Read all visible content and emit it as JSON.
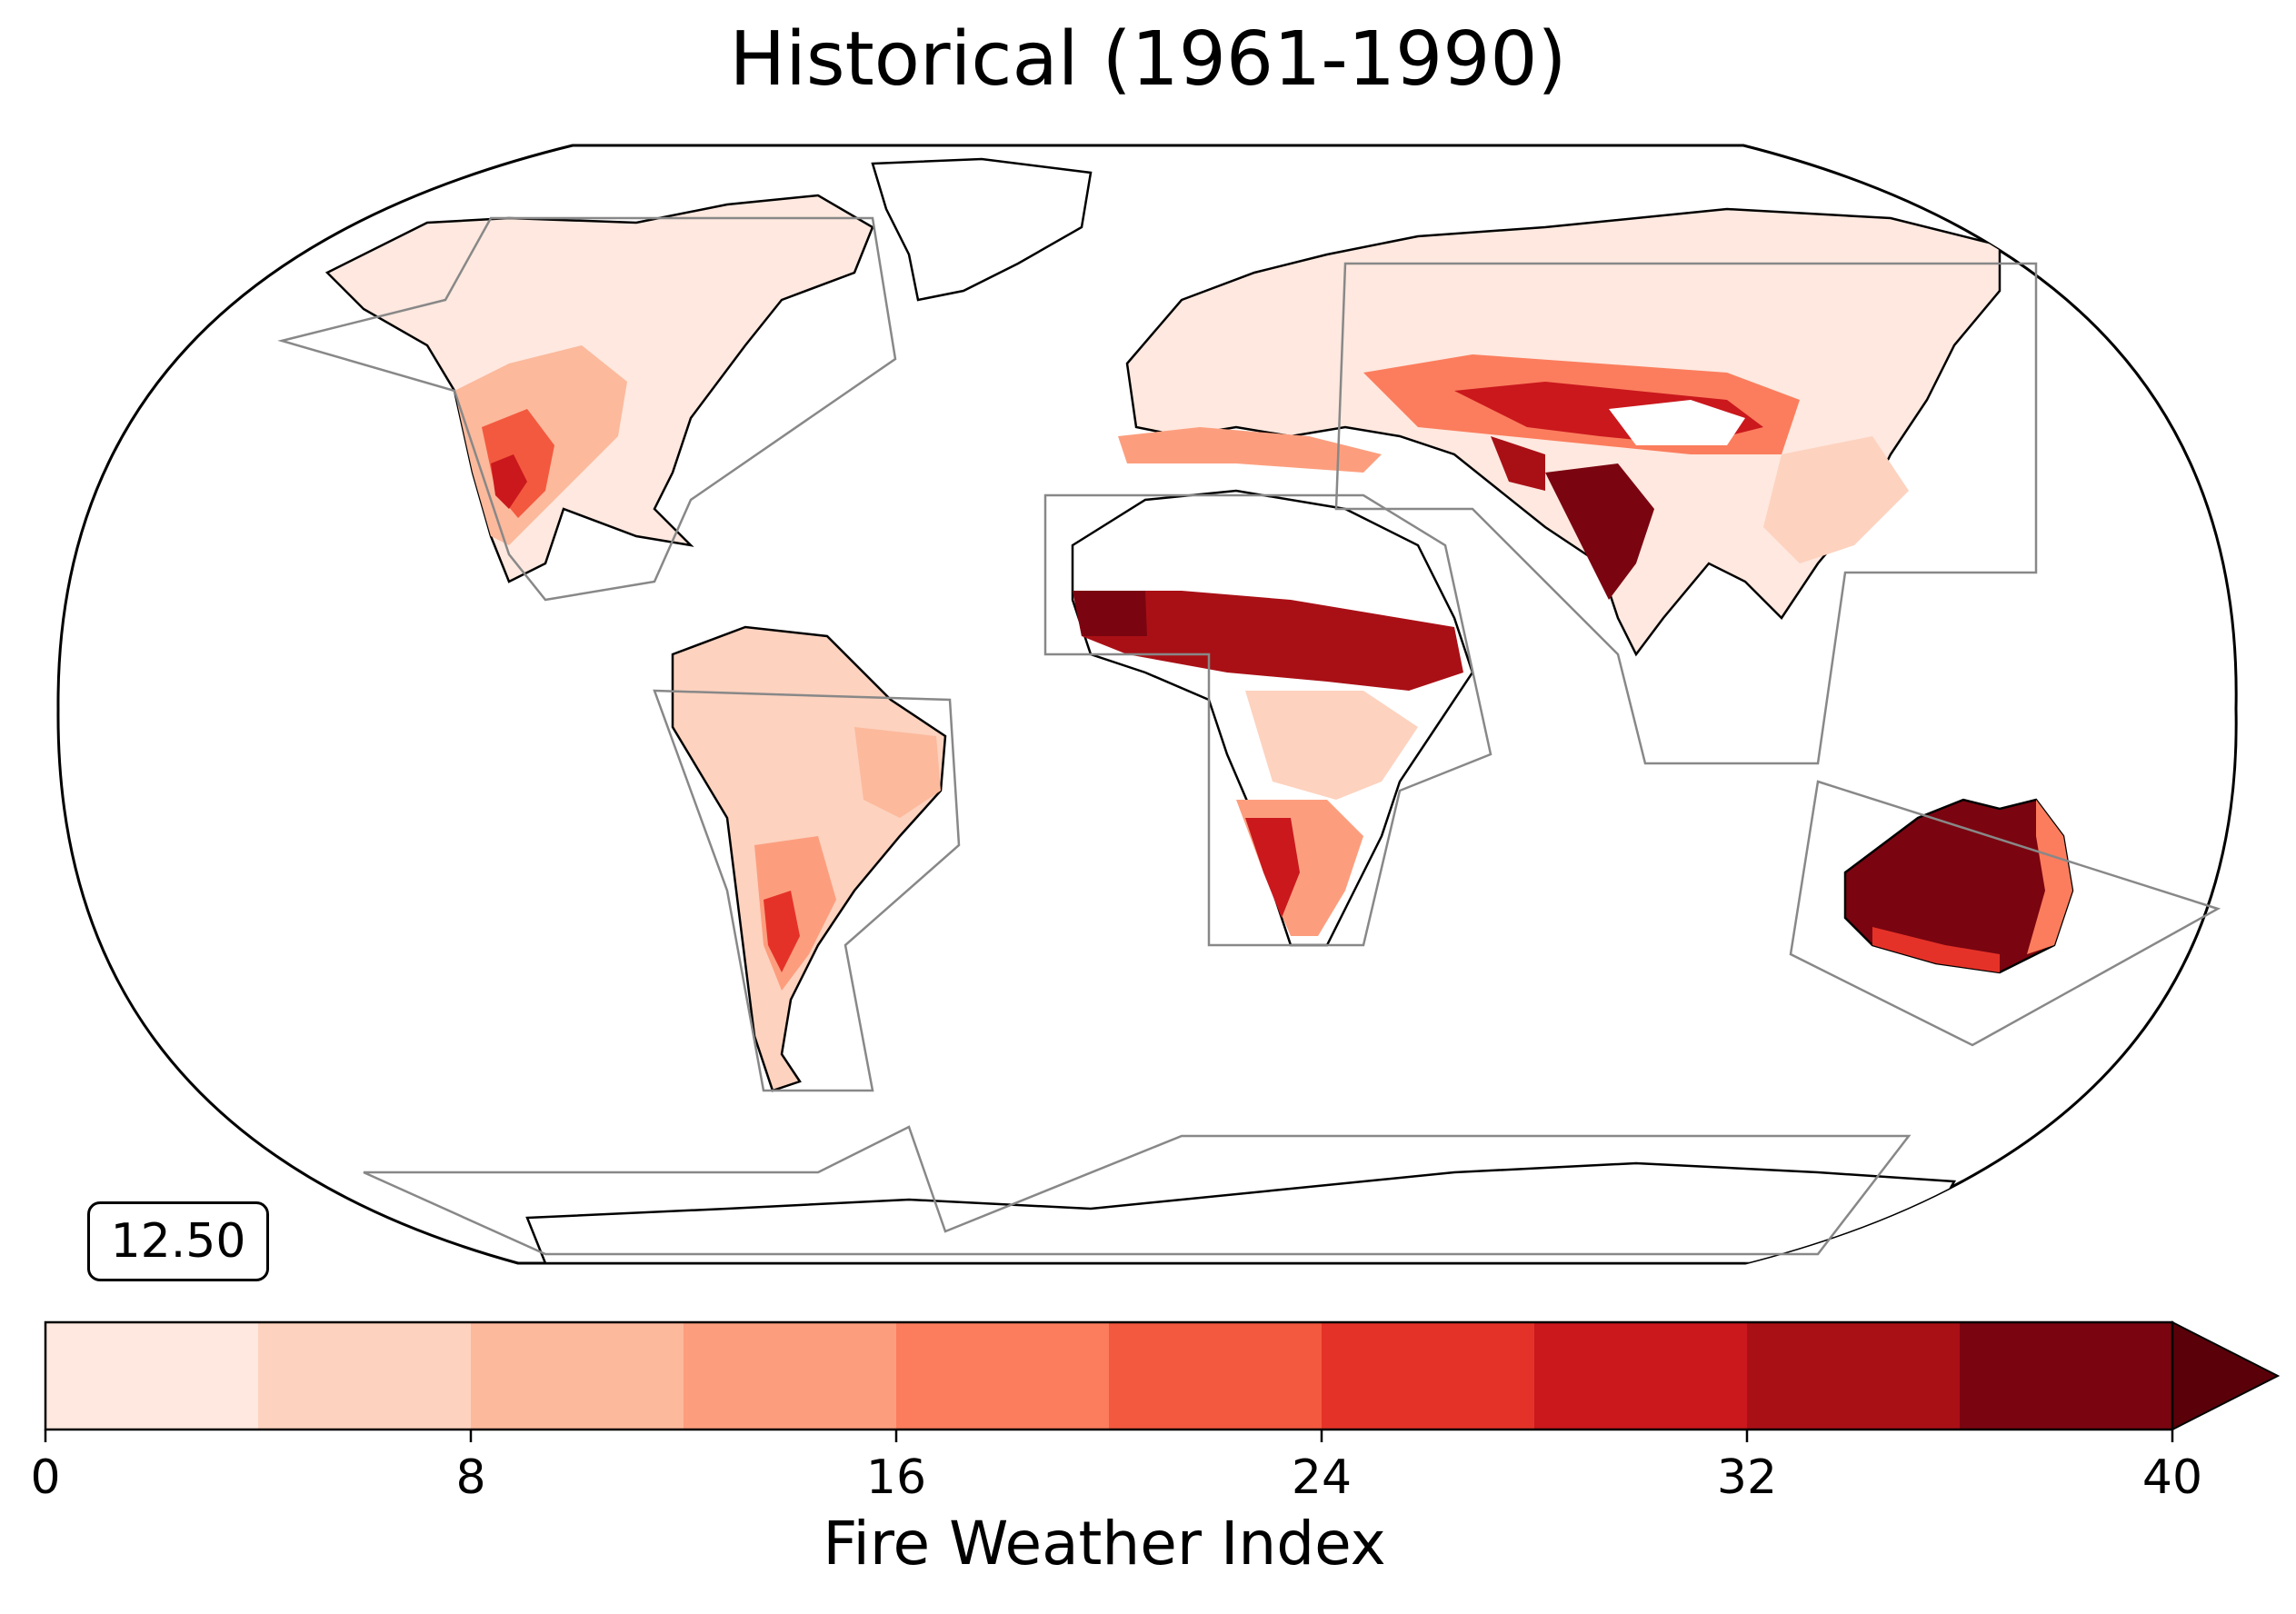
{
  "title": "Historical (1961-1990)",
  "average_value": "12.50",
  "colorbar": {
    "label": "Fire Weather Index",
    "min": 0,
    "max": 40,
    "step": 4,
    "extend": "max",
    "ticks": [
      "0",
      "8",
      "16",
      "24",
      "32",
      "40"
    ],
    "tick_values": [
      0,
      8,
      16,
      24,
      32,
      40
    ],
    "colors": [
      "#fee8df",
      "#fdd2bf",
      "#fcb99c",
      "#fc9e7e",
      "#fb7d5d",
      "#f3593f",
      "#e53228",
      "#ca181d",
      "#a91016",
      "#7a0510",
      "#5a0009"
    ]
  },
  "map": {
    "projection": "Robinson",
    "fill": "Fire Weather Index",
    "overlay": "region outlines",
    "missing_color": "#ffffff"
  }
}
